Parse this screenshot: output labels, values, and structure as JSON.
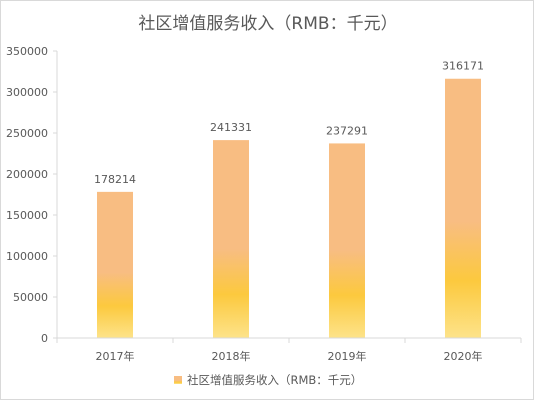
{
  "chart_data": {
    "type": "bar",
    "title": "社区增值服务收入（RMB：千元）",
    "categories": [
      "2017年",
      "2018年",
      "2019年",
      "2020年"
    ],
    "series": [
      {
        "name": "社区增值服务收入（RMB：千元）",
        "values": [
          178214,
          241331,
          237291,
          316171
        ]
      }
    ],
    "data_labels": [
      "178214",
      "241331",
      "237291",
      "316171"
    ],
    "y_ticks": [
      "0",
      "50000",
      "100000",
      "150000",
      "200000",
      "250000",
      "300000",
      "350000"
    ],
    "ylim": [
      0,
      350000
    ],
    "grid": false,
    "legend": "bottom",
    "colors": {
      "bar_top": "#f8bd82",
      "bar_mid": "#fcc93e",
      "bar_bottom": "#fde38a",
      "axis": "#d9d9d9",
      "text": "#595959",
      "title": "#595959"
    }
  }
}
